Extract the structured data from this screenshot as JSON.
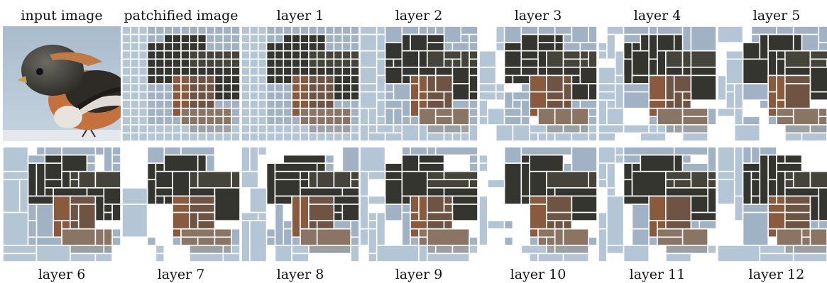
{
  "top_labels": [
    "input image",
    "patchified image",
    "layer 1",
    "layer 2",
    "layer 3",
    "layer 4",
    "layer 5"
  ],
  "bottom_labels": [
    "layer 6",
    "layer 7",
    "layer 8",
    "layer 9",
    "layer 10",
    "layer 11",
    "layer 12"
  ],
  "colors": {
    "background": "#ffffff",
    "sky_light": "#b4c6d6",
    "sky": "#a0b2c4",
    "dark": "#34352f",
    "dark_mid": "#45443b",
    "brown": "#6f5444",
    "orange": "#8a5a3e",
    "tan": "#8a7464",
    "grey": "#9aa0a4",
    "gridline": "#ffffff"
  }
}
